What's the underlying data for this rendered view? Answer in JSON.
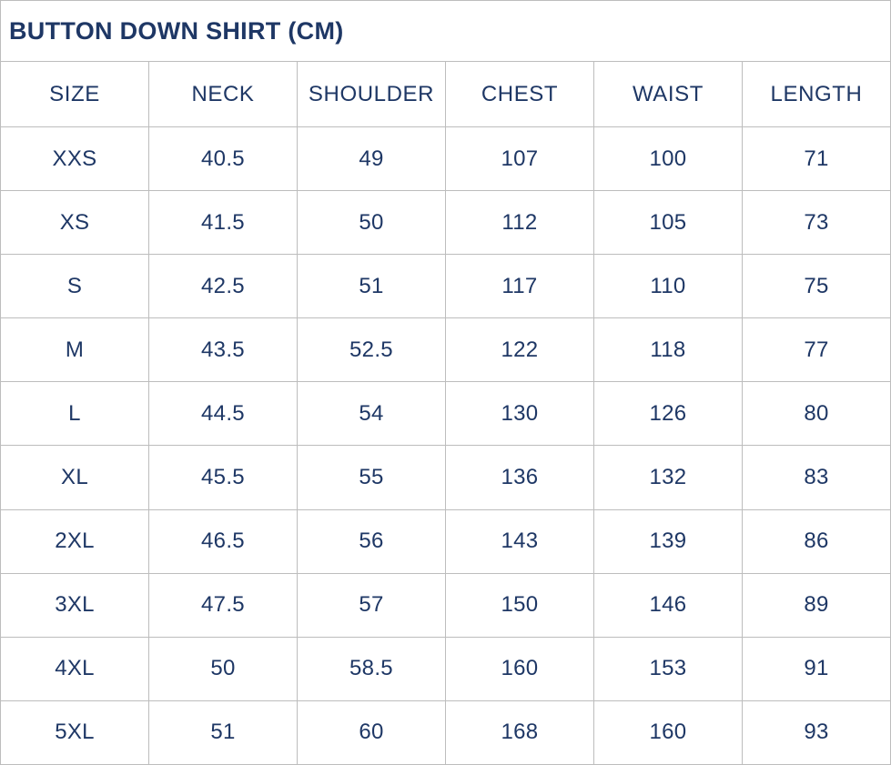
{
  "chart_data": {
    "type": "table",
    "title": "BUTTON DOWN SHIRT (CM)",
    "columns": [
      "SIZE",
      "NECK",
      "SHOULDER",
      "CHEST",
      "WAIST",
      "LENGTH"
    ],
    "rows": [
      [
        "XXS",
        "40.5",
        "49",
        "107",
        "100",
        "71"
      ],
      [
        "XS",
        "41.5",
        "50",
        "112",
        "105",
        "73"
      ],
      [
        "S",
        "42.5",
        "51",
        "117",
        "110",
        "75"
      ],
      [
        "M",
        "43.5",
        "52.5",
        "122",
        "118",
        "77"
      ],
      [
        "L",
        "44.5",
        "54",
        "130",
        "126",
        "80"
      ],
      [
        "XL",
        "45.5",
        "55",
        "136",
        "132",
        "83"
      ],
      [
        "2XL",
        "46.5",
        "56",
        "143",
        "139",
        "86"
      ],
      [
        "3XL",
        "47.5",
        "57",
        "150",
        "146",
        "89"
      ],
      [
        "4XL",
        "50",
        "58.5",
        "160",
        "153",
        "91"
      ],
      [
        "5XL",
        "51",
        "60",
        "168",
        "160",
        "93"
      ]
    ],
    "layout": {
      "title_position": "top-left",
      "grid": "on",
      "column_count": 6,
      "data_row_count": 10
    }
  },
  "colors": {
    "text": "#1e3765",
    "border": "#bdbdbd",
    "background": "#ffffff"
  }
}
